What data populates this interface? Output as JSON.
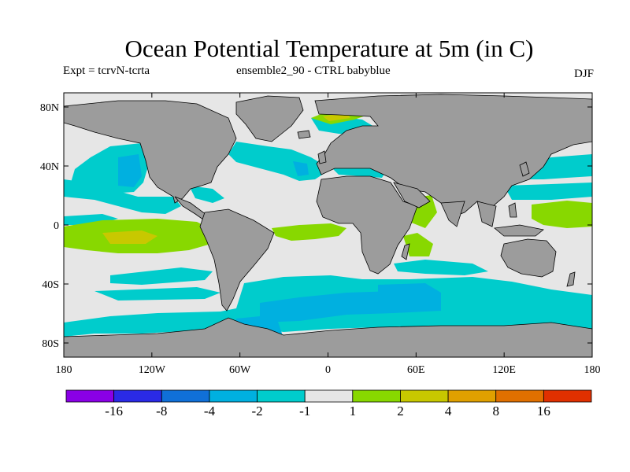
{
  "header": {
    "title": "Ocean Potential Temperature at 5m (in C)",
    "expt": "Expt = tcrvN-tcrta",
    "ensemble": "ensemble2_90 - CTRL babyblue",
    "season": "DJF"
  },
  "map": {
    "lon_ticks": [
      "180",
      "120W",
      "60W",
      "0",
      "60E",
      "120E",
      "180"
    ],
    "lat_ticks": [
      "80N",
      "40N",
      "0",
      "40S",
      "80S"
    ],
    "colors": {
      "land": "#9c9c9c",
      "near_zero": "#e6e6e6",
      "neg_1_2": "#00cccc",
      "neg_2_4": "#00b0e0",
      "neg_4_8": "#2080e0",
      "pos_1_2": "#88d800",
      "pos_2_4": "#c8c800"
    }
  },
  "colorbar": {
    "colors": [
      "#8a00e6",
      "#2a2ae6",
      "#1070d8",
      "#00b0e0",
      "#00cccc",
      "#e6e6e6",
      "#88d800",
      "#c8c800",
      "#e0a000",
      "#e07000",
      "#e03000"
    ],
    "labels": [
      "-16",
      "-8",
      "-4",
      "-2",
      "-1",
      "1",
      "2",
      "4",
      "8",
      "16"
    ]
  }
}
